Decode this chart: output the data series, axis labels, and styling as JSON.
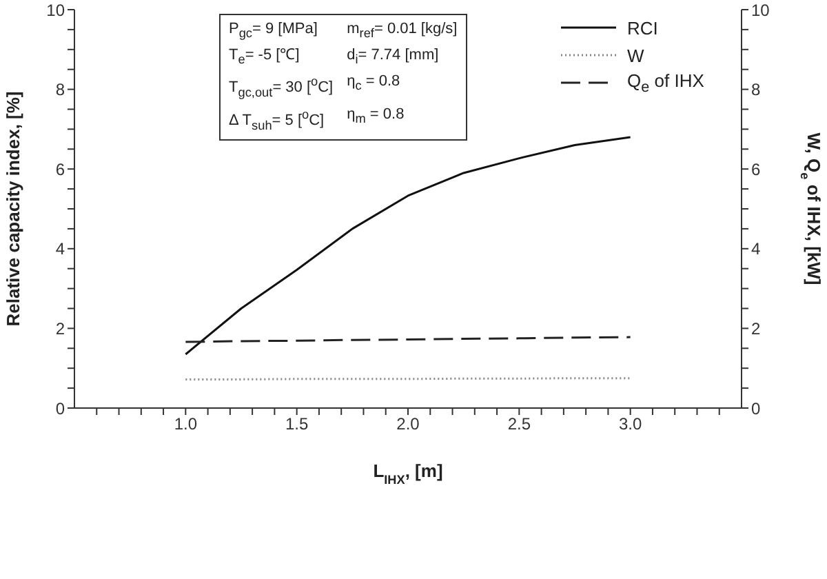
{
  "chart_data": {
    "type": "line",
    "xlabel": "L$_{IHX}$, [m]",
    "ylabel": "Relative capacity index, [%]",
    "y2label": "W, Q$_{e}$ of IHX, [kW]",
    "x": [
      1.0,
      1.25,
      1.5,
      1.75,
      2.0,
      2.25,
      2.5,
      2.75,
      3.0
    ],
    "series": [
      {
        "name": "RCI",
        "color": "#111111",
        "line_style": "solid",
        "values": [
          1.35,
          2.5,
          3.47,
          4.5,
          5.33,
          5.9,
          6.27,
          6.6,
          6.8
        ]
      },
      {
        "name": "W",
        "color": "#888888",
        "line_style": "dotted",
        "values": [
          0.72,
          0.72,
          0.73,
          0.73,
          0.73,
          0.74,
          0.74,
          0.75,
          0.75
        ]
      },
      {
        "name": "Q$_{e}$ of IHX",
        "color": "#222222",
        "line_style": "dashed",
        "values": [
          1.66,
          1.68,
          1.69,
          1.71,
          1.72,
          1.74,
          1.75,
          1.77,
          1.78
        ]
      }
    ],
    "xlim": [
      0.5,
      3.5
    ],
    "xticks": [
      {
        "value": 0.6,
        "label": null
      },
      {
        "value": 0.7,
        "label": null
      },
      {
        "value": 0.8,
        "label": null
      },
      {
        "value": 0.9,
        "label": null
      },
      {
        "value": 1.0,
        "label": "1.0"
      },
      {
        "value": 1.1,
        "label": null
      },
      {
        "value": 1.2,
        "label": null
      },
      {
        "value": 1.3,
        "label": null
      },
      {
        "value": 1.4,
        "label": null
      },
      {
        "value": 1.5,
        "label": "1.5"
      },
      {
        "value": 1.6,
        "label": null
      },
      {
        "value": 1.7,
        "label": null
      },
      {
        "value": 1.8,
        "label": null
      },
      {
        "value": 1.9,
        "label": null
      },
      {
        "value": 2.0,
        "label": "2.0"
      },
      {
        "value": 2.1,
        "label": null
      },
      {
        "value": 2.2,
        "label": null
      },
      {
        "value": 2.3,
        "label": null
      },
      {
        "value": 2.4,
        "label": null
      },
      {
        "value": 2.5,
        "label": "2.5"
      },
      {
        "value": 2.6,
        "label": null
      },
      {
        "value": 2.7,
        "label": null
      },
      {
        "value": 2.8,
        "label": null
      },
      {
        "value": 2.9,
        "label": null
      },
      {
        "value": 3.0,
        "label": "3.0"
      },
      {
        "value": 3.1,
        "label": null
      },
      {
        "value": 3.2,
        "label": null
      },
      {
        "value": 3.3,
        "label": null
      },
      {
        "value": 3.4,
        "label": null
      }
    ],
    "ylim": [
      0,
      10
    ],
    "yticks": [
      0,
      {
        "value": 0.5,
        "label": null
      },
      {
        "value": 1,
        "label": null
      },
      {
        "value": 1.5,
        "label": null
      },
      2,
      {
        "value": 2.5,
        "label": null
      },
      {
        "value": 3,
        "label": null
      },
      {
        "value": 3.5,
        "label": null
      },
      4,
      {
        "value": 4.5,
        "label": null
      },
      {
        "value": 5,
        "label": null
      },
      {
        "value": 5.5,
        "label": null
      },
      6,
      {
        "value": 6.5,
        "label": null
      },
      {
        "value": 7,
        "label": null
      },
      {
        "value": 7.5,
        "label": null
      },
      8,
      {
        "value": 8.5,
        "label": null
      },
      {
        "value": 9,
        "label": null
      },
      {
        "value": 9.5,
        "label": null
      },
      10
    ],
    "y2lim": [
      0,
      10
    ],
    "y2ticks": [
      0,
      {
        "value": 0.5,
        "label": null
      },
      {
        "value": 1,
        "label": null
      },
      {
        "value": 1.5,
        "label": null
      },
      2,
      {
        "value": 2.5,
        "label": null
      },
      {
        "value": 3,
        "label": null
      },
      {
        "value": 3.5,
        "label": null
      },
      4,
      {
        "value": 4.5,
        "label": null
      },
      {
        "value": 5,
        "label": null
      },
      {
        "value": 5.5,
        "label": null
      },
      6,
      {
        "value": 6.5,
        "label": null
      },
      {
        "value": 7,
        "label": null
      },
      {
        "value": 7.5,
        "label": null
      },
      8,
      {
        "value": 8.5,
        "label": null
      },
      {
        "value": 9,
        "label": null
      },
      {
        "value": 9.5,
        "label": null
      },
      10
    ],
    "marker": "none",
    "grid": false,
    "legend": "top right",
    "annotations": [
      "P$_{gc}$= 9 [MPa]",
      "m$_{ref}$= 0.01 [kg/s]",
      "T$_{e}$= -5 [℃]",
      "d$_{i}$= 7.74 [mm]",
      "T$_{gc,out}$= 30 [$^{o}$C]",
      "η$_{c}$ = 0.8",
      "Δ  T$_{suh}$= 5 [$^{o}$C]",
      "η$_{m}$ = 0.8"
    ]
  }
}
